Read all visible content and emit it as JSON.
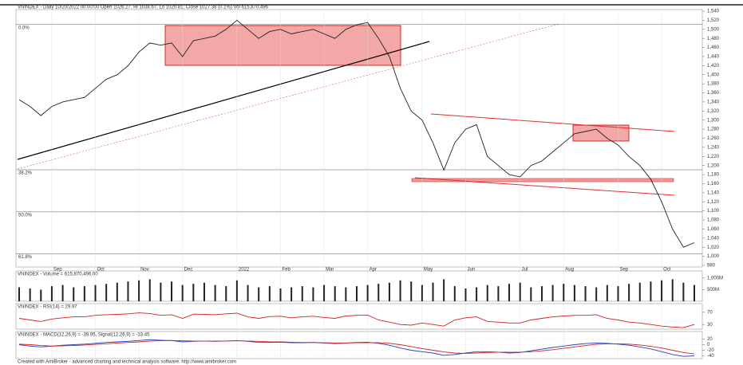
{
  "chart_data": [
    {
      "type": "line",
      "title": "VNINDEX - Daily 10/20/2022 00:00:00 Open 1026.27, Hi 1038.67, Lo 1020.81, Close 1027.38 (0.1%) Vol 615,870,496",
      "footer": "Created with AmiBroker - advanced charting and technical analysis software. http://www.amibroker.com",
      "categories": [
        null,
        null,
        null,
        "Sep",
        null,
        null,
        null,
        "Oct",
        null,
        null,
        null,
        "Nov",
        null,
        null,
        null,
        "Dec",
        null,
        null,
        null,
        null,
        "2022",
        null,
        null,
        null,
        "Feb",
        null,
        null,
        null,
        "Mar",
        null,
        null,
        null,
        "Apr",
        null,
        null,
        null,
        null,
        "May",
        null,
        null,
        null,
        "Jun",
        null,
        null,
        null,
        null,
        "Jul",
        null,
        null,
        null,
        "Aug",
        null,
        null,
        null,
        null,
        "Sep",
        null,
        null,
        null,
        "Oct",
        null,
        null,
        null
      ],
      "series": [
        {
          "color": "#222222",
          "values": [
            1345,
            1330,
            1310,
            1330,
            1340,
            1345,
            1350,
            1370,
            1390,
            1400,
            1420,
            1450,
            1470,
            1465,
            1470,
            1440,
            1475,
            1480,
            1485,
            1500,
            1520,
            1500,
            1480,
            1495,
            1500,
            1490,
            1495,
            1500,
            1490,
            1480,
            1500,
            1510,
            1515,
            1480,
            1440,
            1370,
            1320,
            1300,
            1250,
            1190,
            1250,
            1280,
            1290,
            1220,
            1200,
            1180,
            1175,
            1200,
            1210,
            1230,
            1250,
            1270,
            1275,
            1280,
            1260,
            1245,
            1220,
            1200,
            1170,
            1120,
            1060,
            1020,
            1030
          ]
        }
      ],
      "ylim": [
        980,
        1540
      ],
      "yticks": [
        {
          "value": 1540,
          "label": "1,540"
        },
        {
          "value": 1520,
          "label": "1,520"
        },
        {
          "value": 1500,
          "label": "1,500"
        },
        {
          "value": 1480,
          "label": "1,480"
        },
        {
          "value": 1460,
          "label": "1,460"
        },
        {
          "value": 1440,
          "label": "1,440"
        },
        {
          "value": 1420,
          "label": "1,420"
        },
        {
          "value": 1400,
          "label": "1,400"
        },
        {
          "value": 1380,
          "label": "1,380"
        },
        {
          "value": 1360,
          "label": "1,360"
        },
        {
          "value": 1340,
          "label": "1,340"
        },
        {
          "value": 1320,
          "label": "1,320"
        },
        {
          "value": 1300,
          "label": "1,300"
        },
        {
          "value": 1280,
          "label": "1,280"
        },
        {
          "value": 1260,
          "label": "1,260"
        },
        {
          "value": 1240,
          "label": "1,240"
        },
        {
          "value": 1220,
          "label": "1,220"
        },
        {
          "value": 1200,
          "label": "1,200"
        },
        {
          "value": 1180,
          "label": "1,180"
        },
        {
          "value": 1160,
          "label": "1,160"
        },
        {
          "value": 1140,
          "label": "1,140"
        },
        {
          "value": 1120,
          "label": "1,120"
        },
        {
          "value": 1100,
          "label": "1,100"
        },
        {
          "value": 1080,
          "label": "1,080"
        },
        {
          "value": 1060,
          "label": "1,060"
        },
        {
          "value": 1040,
          "label": "1,040"
        },
        {
          "value": 1020,
          "label": "1,020"
        },
        {
          "value": 1000,
          "label": "1,000"
        },
        {
          "value": 980,
          "label": "980"
        }
      ],
      "fib_levels": [
        {
          "label": "0.0%",
          "value": 1510.51
        },
        {
          "label": "38.2%",
          "value": 1190.68
        },
        {
          "label": "50.0%",
          "value": 1097.88
        },
        {
          "label": "61.8%",
          "value": 1005.3
        }
      ]
    },
    {
      "type": "bar",
      "title": "VNINDEX - Volume = 615,870,496.00",
      "color": "#222222",
      "values": [
        600,
        550,
        500,
        650,
        700,
        600,
        650,
        700,
        750,
        800,
        850,
        900,
        950,
        800,
        850,
        700,
        750,
        800,
        700,
        650,
        900,
        700,
        600,
        650,
        550,
        600,
        650,
        600,
        700,
        650,
        600,
        650,
        700,
        750,
        800,
        900,
        850,
        700,
        800,
        950,
        650,
        550,
        600,
        700,
        650,
        750,
        800,
        600,
        650,
        700,
        750,
        700,
        650,
        600,
        700,
        650,
        750,
        800,
        850,
        900,
        950,
        800,
        700
      ],
      "ylim": [
        0,
        1100
      ],
      "yticks": [
        {
          "value": 1000,
          "label": "1,000M"
        },
        {
          "value": 500,
          "label": "500M"
        }
      ]
    },
    {
      "type": "line",
      "title": "VNINDEX - RSI(14) = 29.97",
      "series": [
        {
          "color": "#d62020",
          "values": [
            50,
            45,
            40,
            48,
            52,
            55,
            55,
            60,
            62,
            63,
            65,
            68,
            66,
            60,
            62,
            50,
            64,
            63,
            62,
            65,
            67,
            55,
            50,
            56,
            57,
            52,
            55,
            57,
            53,
            50,
            58,
            60,
            61,
            45,
            38,
            30,
            28,
            35,
            30,
            25,
            45,
            52,
            55,
            40,
            38,
            35,
            35,
            45,
            50,
            55,
            58,
            60,
            60,
            62,
            50,
            45,
            38,
            35,
            30,
            25,
            22,
            20,
            30
          ]
        }
      ],
      "ylim": [
        15,
        80
      ],
      "yticks": [
        70,
        30
      ]
    },
    {
      "type": "line",
      "title": "VNINDEX - MACD(12,26,9) = -39.95, Signal(12,26,9) = -33.45",
      "series": [
        {
          "color": "#2040c0",
          "values": [
            0,
            -5,
            -8,
            -5,
            -2,
            0,
            2,
            5,
            8,
            10,
            12,
            15,
            18,
            16,
            15,
            10,
            12,
            13,
            12,
            13,
            15,
            12,
            8,
            8,
            9,
            7,
            7,
            8,
            6,
            4,
            6,
            8,
            9,
            5,
            -2,
            -12,
            -20,
            -25,
            -30,
            -38,
            -35,
            -30,
            -25,
            -25,
            -27,
            -30,
            -28,
            -22,
            -16,
            -10,
            -5,
            0,
            4,
            6,
            5,
            2,
            -2,
            -8,
            -15,
            -25,
            -35,
            -42,
            -40
          ]
        },
        {
          "color": "#d62020",
          "values": [
            2,
            0,
            -3,
            -5,
            -4,
            -3,
            -1,
            1,
            3,
            6,
            8,
            10,
            13,
            14,
            15,
            14,
            13,
            13,
            13,
            13,
            14,
            13,
            12,
            10,
            10,
            9,
            8,
            8,
            7,
            6,
            6,
            7,
            7,
            7,
            5,
            0,
            -7,
            -14,
            -20,
            -26,
            -30,
            -31,
            -30,
            -28,
            -27,
            -27,
            -27,
            -25,
            -22,
            -18,
            -13,
            -8,
            -3,
            1,
            3,
            3,
            2,
            -1,
            -6,
            -12,
            -20,
            -28,
            -33
          ]
        }
      ],
      "ylim": [
        -50,
        30
      ],
      "yticks": [
        20,
        0,
        -20,
        -40
      ]
    }
  ]
}
